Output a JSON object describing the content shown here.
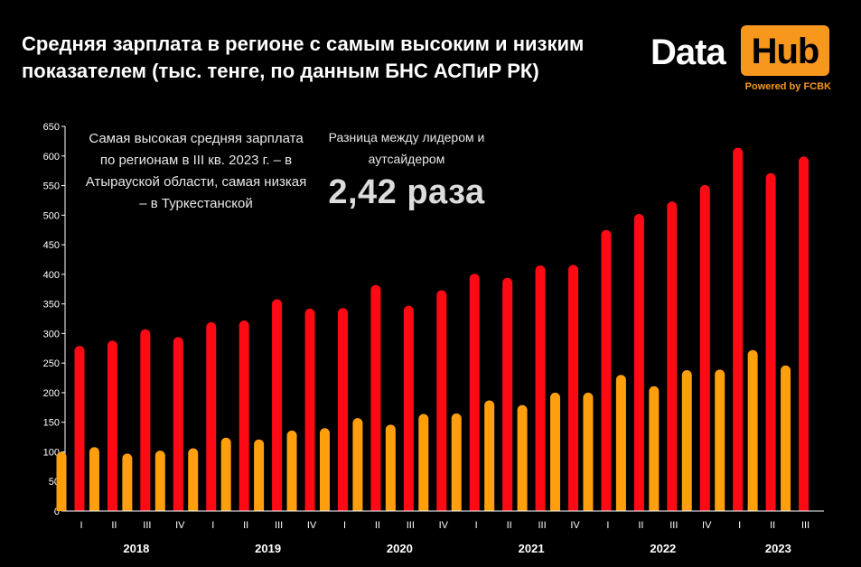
{
  "title": "Средняя зарплата в регионе с самым высоким и низким показателем (тыс. тенге, по данным БНС АСПиР РК)",
  "logo": {
    "word1": "Data",
    "word2": "Hub",
    "powered": "Powered by FCBK"
  },
  "annotations": {
    "left_note": "Самая высокая средняя зарплата по регионам в III кв. 2023 г. – в Атырауской области, самая низкая – в Туркестанской",
    "right_note": "Разница между лидером и аутсайдером",
    "ratio": "2,42 раза"
  },
  "colors": {
    "background": "#000000",
    "high": "#ff0a14",
    "low": "#ff9f0d",
    "axis_text": "#ffffff",
    "logo_accent": "#f7981d"
  },
  "chart_data": {
    "type": "bar",
    "title": "Средняя зарплата в регионе с самым высоким и низким показателем (тыс. тенге, по данным БНС АСПиР РК)",
    "xlabel": "",
    "ylabel": "",
    "ylim": [
      0,
      650
    ],
    "yticks": [
      0,
      50,
      100,
      150,
      200,
      250,
      300,
      350,
      400,
      450,
      500,
      550,
      600,
      650
    ],
    "grid": false,
    "legend": "none",
    "categories": [
      "I",
      "II",
      "III",
      "IV",
      "I",
      "II",
      "III",
      "IV",
      "I",
      "II",
      "III",
      "IV",
      "I",
      "II",
      "III",
      "IV",
      "I",
      "II",
      "III",
      "IV",
      "I",
      "II",
      "III"
    ],
    "years": [
      {
        "label": "2018",
        "count": 4
      },
      {
        "label": "2019",
        "count": 4
      },
      {
        "label": "2020",
        "count": 4
      },
      {
        "label": "2021",
        "count": 4
      },
      {
        "label": "2022",
        "count": 4
      },
      {
        "label": "2023",
        "count": 3
      }
    ],
    "series": [
      {
        "values": [
          100,
          108,
          97,
          102,
          106,
          124,
          121,
          136,
          140,
          157,
          146,
          164,
          165,
          187,
          179,
          200,
          200,
          230,
          211,
          238,
          239,
          272,
          246
        ]
      },
      {
        "values": [
          279,
          288,
          307,
          294,
          319,
          322,
          358,
          342,
          343,
          382,
          347,
          373,
          401,
          394,
          415,
          416,
          475,
          502,
          523,
          551,
          614,
          571,
          599
        ]
      }
    ]
  }
}
